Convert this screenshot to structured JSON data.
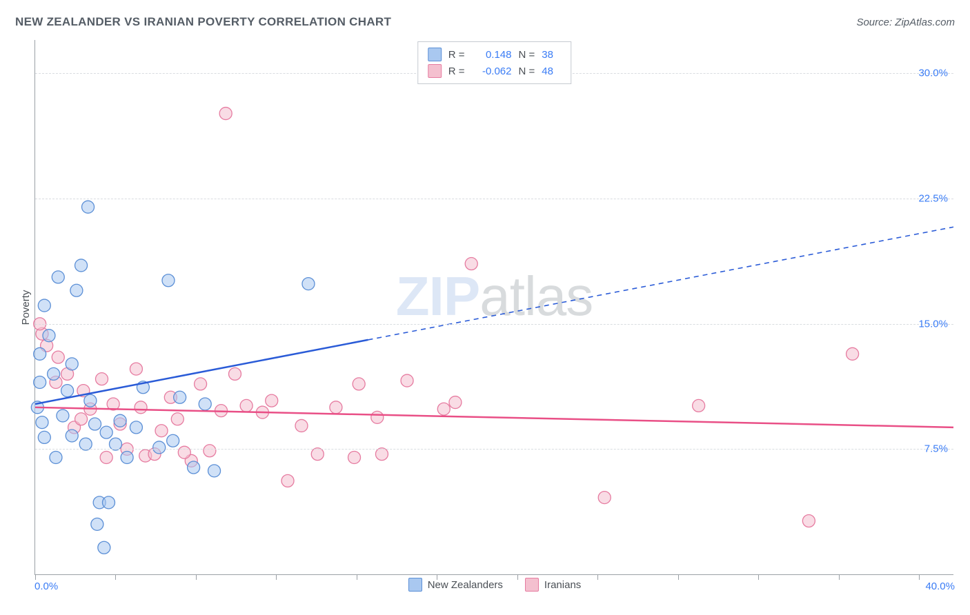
{
  "title": "NEW ZEALANDER VS IRANIAN POVERTY CORRELATION CHART",
  "source": "Source: ZipAtlas.com",
  "ylabel": "Poverty",
  "watermark": {
    "zip": "ZIP",
    "atlas": "atlas"
  },
  "chart": {
    "type": "scatter",
    "background_color": "#ffffff",
    "grid_color": "#d8dce0",
    "axis_color": "#9aa0a6",
    "tick_label_color": "#3a7cf5",
    "text_color": "#4a4f55",
    "xlim": [
      0,
      40
    ],
    "ylim": [
      0,
      32
    ],
    "yticks": [
      7.5,
      15.0,
      22.5,
      30.0
    ],
    "ytick_labels": [
      "7.5%",
      "15.0%",
      "22.5%",
      "30.0%"
    ],
    "x_min_label": "0.0%",
    "x_max_label": "40.0%",
    "xtick_positions": [
      0,
      3.5,
      7,
      10.5,
      14,
      17.5,
      21,
      24.5,
      28,
      31.5,
      35,
      38.5
    ],
    "marker_radius": 9,
    "marker_opacity": 0.55,
    "series": [
      {
        "name": "New Zealanders",
        "color_fill": "#a9c8f0",
        "color_stroke": "#5b8fd6",
        "line_color": "#2a5bd7",
        "r_label": "R =",
        "r_value": "0.148",
        "n_label": "N =",
        "n_value": "38",
        "trend": {
          "y_at_x0": 10.2,
          "y_at_xmax": 20.8,
          "x_solid_end": 14.5
        },
        "points": [
          [
            0.1,
            10.0
          ],
          [
            0.2,
            11.5
          ],
          [
            0.2,
            13.2
          ],
          [
            0.3,
            9.1
          ],
          [
            0.4,
            8.2
          ],
          [
            0.4,
            16.1
          ],
          [
            0.6,
            14.3
          ],
          [
            0.8,
            12.0
          ],
          [
            0.9,
            7.0
          ],
          [
            1.0,
            17.8
          ],
          [
            1.2,
            9.5
          ],
          [
            1.4,
            11.0
          ],
          [
            1.6,
            8.3
          ],
          [
            1.6,
            12.6
          ],
          [
            1.8,
            17.0
          ],
          [
            2.0,
            18.5
          ],
          [
            2.2,
            7.8
          ],
          [
            2.3,
            22.0
          ],
          [
            2.4,
            10.4
          ],
          [
            2.6,
            9.0
          ],
          [
            2.7,
            3.0
          ],
          [
            2.8,
            4.3
          ],
          [
            3.1,
            8.5
          ],
          [
            3.2,
            4.3
          ],
          [
            3.5,
            7.8
          ],
          [
            3.7,
            9.2
          ],
          [
            4.0,
            7.0
          ],
          [
            4.4,
            8.8
          ],
          [
            4.7,
            11.2
          ],
          [
            5.4,
            7.6
          ],
          [
            5.8,
            17.6
          ],
          [
            6.0,
            8.0
          ],
          [
            6.3,
            10.6
          ],
          [
            6.9,
            6.4
          ],
          [
            7.4,
            10.2
          ],
          [
            7.8,
            6.2
          ],
          [
            11.9,
            17.4
          ],
          [
            3.0,
            1.6
          ]
        ]
      },
      {
        "name": "Iranians",
        "color_fill": "#f4c0cf",
        "color_stroke": "#e67ba0",
        "line_color": "#e94f86",
        "r_label": "R =",
        "r_value": "-0.062",
        "n_label": "N =",
        "n_value": "48",
        "trend": {
          "y_at_x0": 10.0,
          "y_at_xmax": 8.8,
          "x_solid_end": 40
        },
        "points": [
          [
            0.3,
            14.4
          ],
          [
            0.5,
            13.7
          ],
          [
            0.9,
            11.5
          ],
          [
            1.4,
            12.0
          ],
          [
            1.7,
            8.8
          ],
          [
            2.1,
            11.0
          ],
          [
            2.4,
            9.9
          ],
          [
            2.9,
            11.7
          ],
          [
            3.1,
            7.0
          ],
          [
            3.4,
            10.2
          ],
          [
            3.7,
            9.0
          ],
          [
            4.0,
            7.5
          ],
          [
            4.4,
            12.3
          ],
          [
            4.8,
            7.1
          ],
          [
            5.2,
            7.2
          ],
          [
            5.5,
            8.6
          ],
          [
            5.9,
            10.6
          ],
          [
            6.2,
            9.3
          ],
          [
            6.8,
            6.8
          ],
          [
            7.2,
            11.4
          ],
          [
            7.6,
            7.4
          ],
          [
            8.1,
            9.8
          ],
          [
            8.3,
            27.6
          ],
          [
            8.7,
            12.0
          ],
          [
            9.2,
            10.1
          ],
          [
            9.9,
            9.7
          ],
          [
            10.3,
            10.4
          ],
          [
            11.0,
            5.6
          ],
          [
            11.6,
            8.9
          ],
          [
            12.3,
            7.2
          ],
          [
            13.1,
            10.0
          ],
          [
            13.9,
            7.0
          ],
          [
            14.1,
            11.4
          ],
          [
            14.9,
            9.4
          ],
          [
            15.1,
            7.2
          ],
          [
            16.2,
            11.6
          ],
          [
            17.8,
            9.9
          ],
          [
            18.3,
            10.3
          ],
          [
            19.0,
            18.6
          ],
          [
            24.8,
            4.6
          ],
          [
            28.9,
            10.1
          ],
          [
            33.7,
            3.2
          ],
          [
            35.6,
            13.2
          ],
          [
            0.2,
            15.0
          ],
          [
            1.0,
            13.0
          ],
          [
            2.0,
            9.3
          ],
          [
            4.6,
            10.0
          ],
          [
            6.5,
            7.3
          ]
        ]
      }
    ]
  }
}
